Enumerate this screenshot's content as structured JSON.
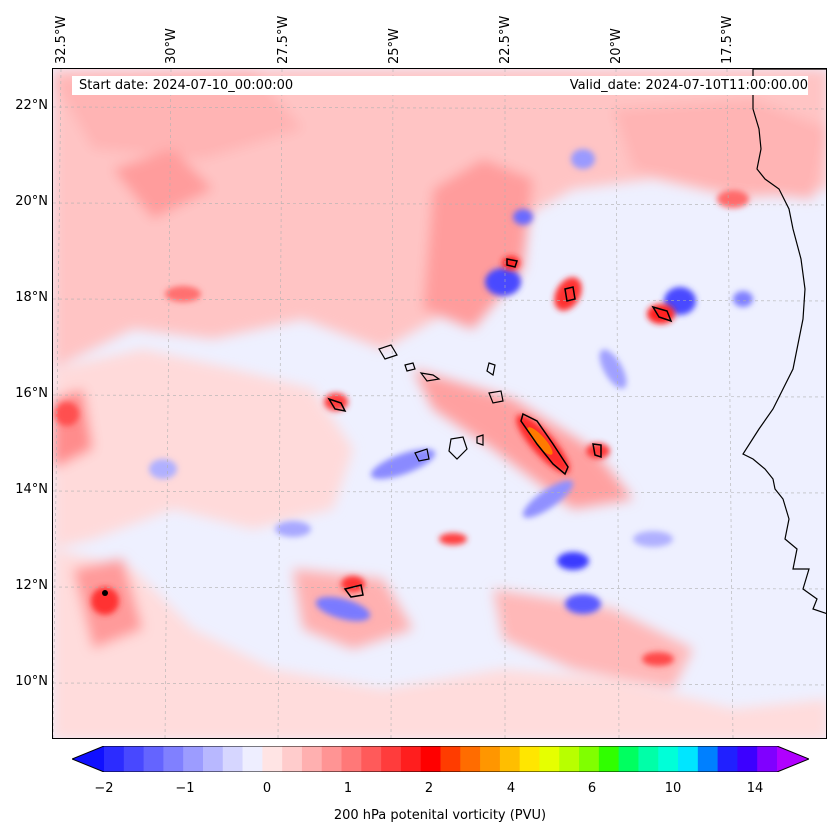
{
  "map": {
    "start_label": "Start date: 2024-07-10_00:00:00",
    "valid_label": "Valid_date: 2024-07-10T11:00:00.00",
    "longitude_labels": [
      "32.5°W",
      "30°W",
      "27.5°W",
      "25°W",
      "22.5°W",
      "20°W",
      "17.5°W"
    ],
    "latitude_labels": [
      "22°N",
      "20°N",
      "18°N",
      "16°N",
      "14°N",
      "12°N",
      "10°N"
    ],
    "colors": {
      "background": "#eef0ff",
      "land_outline": "#000000",
      "blue_strong": "#2a2aff",
      "blue_mid": "#7a7aff",
      "blue_light": "#c8c8ff",
      "red_light": "#ffd0d0",
      "red_mid": "#ff8c8c",
      "red_strong": "#ff2a2a",
      "orange": "#ff7a00"
    }
  },
  "colorbar": {
    "tick_labels": [
      "−2",
      "−1",
      "0",
      "1",
      "2",
      "4",
      "6",
      "10",
      "14"
    ],
    "label": "200 hPa potenital vorticity (PVU)",
    "colors": [
      "#1010ff",
      "#2c2cff",
      "#4848ff",
      "#6464ff",
      "#8080ff",
      "#9c9cff",
      "#b8b8ff",
      "#d6d6ff",
      "#eeeeff",
      "#ffe4e4",
      "#ffcccc",
      "#ffb0b0",
      "#ff9494",
      "#ff7878",
      "#ff5a5a",
      "#ff3c3c",
      "#ff1e1e",
      "#ff0000",
      "#ff3c00",
      "#ff6c00",
      "#ff9600",
      "#ffbe00",
      "#ffe600",
      "#e6ff00",
      "#b8ff00",
      "#80ff00",
      "#30ff00",
      "#00ff60",
      "#00ffa8",
      "#00ffd8",
      "#00e6ff",
      "#0080ff",
      "#2020ff",
      "#3c00ff",
      "#8000ff",
      "#b000ff"
    ]
  }
}
